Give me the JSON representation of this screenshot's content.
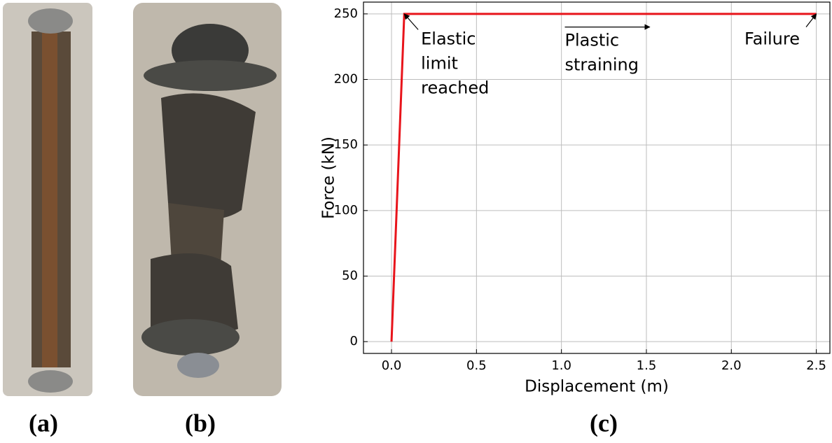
{
  "panels": {
    "a": "(a)",
    "b": "(b)",
    "c": "(c)"
  },
  "chart_data": {
    "type": "line",
    "x_label": "Displacement (m)",
    "y_label": "Force (kN)",
    "x": [
      0,
      0.075,
      2.5
    ],
    "series": [
      {
        "color": "#e8141b",
        "values": [
          0,
          250,
          250
        ]
      }
    ],
    "xlim": [
      -0.165,
      2.58
    ],
    "ylim": [
      -9,
      259
    ],
    "xticks": [
      {
        "value": 0,
        "label": "0.0"
      },
      0.5,
      {
        "value": 1,
        "label": "1.0"
      },
      1.5,
      {
        "value": 2,
        "label": "2.0"
      },
      2.5
    ],
    "yticks": [
      0,
      50,
      100,
      150,
      200,
      250
    ],
    "grid": true,
    "annotations": [
      {
        "text": [
          "Elastic",
          "limit",
          "reached"
        ],
        "from": [
          0.157,
          238
        ],
        "to": [
          0.075,
          250
        ]
      },
      {
        "text": [
          "Plastic",
          "straining"
        ],
        "from": [
          1.02,
          240
        ],
        "to": [
          1.52,
          240
        ]
      },
      {
        "text": [
          "Failure"
        ],
        "from": [
          2.44,
          240
        ],
        "to": [
          2.5,
          250
        ]
      }
    ]
  }
}
